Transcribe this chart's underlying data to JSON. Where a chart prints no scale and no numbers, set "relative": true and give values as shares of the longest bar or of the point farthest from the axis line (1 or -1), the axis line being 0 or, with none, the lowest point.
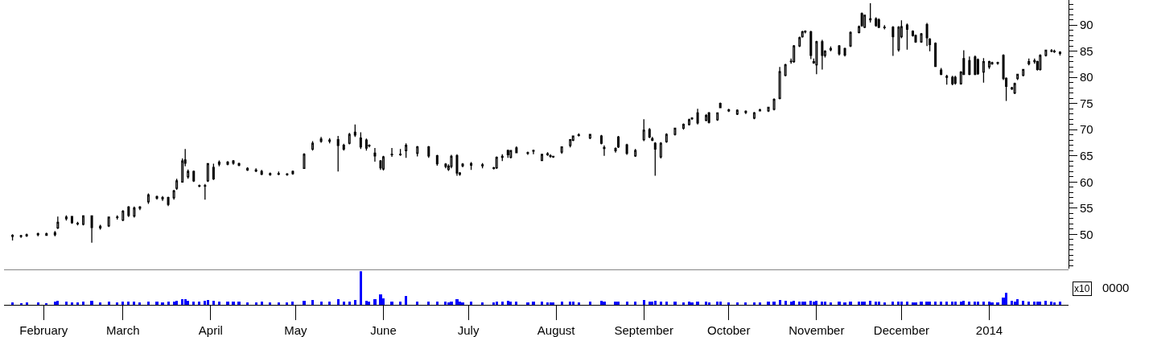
{
  "chart_data": [
    {
      "type": "candlestick",
      "color": "#000000",
      "tick_labels": "y",
      "xlim": [
        "2013-01-18",
        "2014-01-29"
      ],
      "ylim": [
        43.5,
        94.8
      ],
      "yticks": [
        50,
        55,
        60,
        65,
        70,
        75,
        80,
        85,
        90
      ],
      "x": [
        "2013-01-21",
        "2013-01-24",
        "2013-01-26",
        "2013-01-30",
        "2013-02-02",
        "2013-02-05",
        "2013-02-06",
        "2013-02-09",
        "2013-02-11",
        "2013-02-13",
        "2013-02-15",
        "2013-02-18",
        "2013-02-21",
        "2013-02-24",
        "2013-02-27",
        "2013-03-01",
        "2013-03-03",
        "2013-03-05",
        "2013-03-07",
        "2013-03-10",
        "2013-03-13",
        "2013-03-15",
        "2013-03-17",
        "2013-03-19",
        "2013-03-20",
        "2013-03-22",
        "2013-03-23",
        "2013-03-24",
        "2013-03-26",
        "2013-03-28",
        "2013-03-30",
        "2013-03-31",
        "2013-04-02",
        "2013-04-04",
        "2013-04-07",
        "2013-04-09",
        "2013-04-11",
        "2013-04-14",
        "2013-04-17",
        "2013-04-19",
        "2013-04-22",
        "2013-04-25",
        "2013-04-28",
        "2013-04-30",
        "2013-05-04",
        "2013-05-07",
        "2013-05-10",
        "2013-05-13",
        "2013-05-16",
        "2013-05-18",
        "2013-05-20",
        "2013-05-22",
        "2013-05-24",
        "2013-05-26",
        "2013-05-27",
        "2013-05-29",
        "2013-05-31",
        "2013-06-01",
        "2013-06-04",
        "2013-06-07",
        "2013-06-09",
        "2013-06-13",
        "2013-06-17",
        "2013-06-20",
        "2013-06-23",
        "2013-06-24",
        "2013-06-25",
        "2013-06-27",
        "2013-06-28",
        "2013-06-29",
        "2013-07-02",
        "2013-07-06",
        "2013-07-10",
        "2013-07-11",
        "2013-07-13",
        "2013-07-15",
        "2013-07-16",
        "2013-07-18",
        "2013-07-22",
        "2013-07-24",
        "2013-07-27",
        "2013-07-29",
        "2013-07-30",
        "2013-07-31",
        "2013-08-03",
        "2013-08-06",
        "2013-08-07",
        "2013-08-09",
        "2013-08-13",
        "2013-08-17",
        "2013-08-18",
        "2013-08-22",
        "2013-08-23",
        "2013-08-26",
        "2013-08-29",
        "2013-09-01",
        "2013-09-03",
        "2013-09-04",
        "2013-09-05",
        "2013-09-07",
        "2013-09-09",
        "2013-09-12",
        "2013-09-15",
        "2013-09-17",
        "2013-09-18",
        "2013-09-20",
        "2013-09-23",
        "2013-09-24",
        "2013-09-27",
        "2013-09-28",
        "2013-10-01",
        "2013-10-04",
        "2013-10-07",
        "2013-10-10",
        "2013-10-12",
        "2013-10-15",
        "2013-10-17",
        "2013-10-19",
        "2013-10-21",
        "2013-10-23",
        "2013-10-24",
        "2013-10-26",
        "2013-10-27",
        "2013-10-28",
        "2013-10-30",
        "2013-10-31",
        "2013-11-01",
        "2013-11-03",
        "2013-11-04",
        "2013-11-06",
        "2013-11-09",
        "2013-11-11",
        "2013-11-13",
        "2013-11-16",
        "2013-11-17",
        "2013-11-18",
        "2013-11-20",
        "2013-11-22",
        "2013-11-23",
        "2013-11-25",
        "2013-11-28",
        "2013-11-30",
        "2013-12-01",
        "2013-12-03",
        "2013-12-05",
        "2013-12-06",
        "2013-12-08",
        "2013-12-10",
        "2013-12-11",
        "2013-12-13",
        "2013-12-15",
        "2013-12-17",
        "2013-12-19",
        "2013-12-20",
        "2013-12-22",
        "2013-12-23",
        "2013-12-25",
        "2013-12-27",
        "2013-12-28",
        "2013-12-30",
        "2014-01-01",
        "2014-01-02",
        "2014-01-04",
        "2014-01-06",
        "2014-01-07",
        "2014-01-09",
        "2014-01-10",
        "2014-01-11",
        "2014-01-13",
        "2014-01-15",
        "2014-01-17",
        "2014-01-18",
        "2014-01-19",
        "2014-01-21",
        "2014-01-23",
        "2014-01-24",
        "2014-01-26"
      ],
      "ohlc": [
        [
          49.6,
          50.0,
          48.8,
          49.8
        ],
        [
          49.6,
          49.9,
          49.3,
          49.7
        ],
        [
          49.7,
          50.1,
          49.5,
          49.9
        ],
        [
          49.9,
          50.3,
          49.6,
          50.1
        ],
        [
          50.1,
          50.3,
          49.7,
          49.8
        ],
        [
          49.9,
          50.6,
          49.6,
          50.3
        ],
        [
          51.2,
          53.4,
          51.0,
          52.3
        ],
        [
          53.0,
          53.6,
          52.6,
          53.3
        ],
        [
          53.4,
          53.5,
          52.0,
          52.2
        ],
        [
          52.0,
          52.4,
          51.7,
          52.1
        ],
        [
          51.9,
          53.6,
          51.7,
          53.5
        ],
        [
          53.5,
          53.6,
          48.4,
          51.3
        ],
        [
          51.2,
          51.8,
          50.9,
          51.5
        ],
        [
          51.6,
          53.4,
          51.4,
          53.3
        ],
        [
          53.2,
          53.6,
          52.8,
          53.3
        ],
        [
          52.7,
          54.6,
          52.5,
          54.4
        ],
        [
          55.2,
          55.4,
          53.3,
          53.6
        ],
        [
          53.5,
          55.3,
          53.2,
          55.0
        ],
        [
          55.0,
          55.4,
          54.6,
          55.2
        ],
        [
          56.2,
          57.8,
          55.8,
          57.5
        ],
        [
          57.2,
          57.4,
          56.6,
          56.9
        ],
        [
          56.8,
          57.3,
          56.4,
          57.0
        ],
        [
          57.0,
          57.2,
          55.4,
          55.7
        ],
        [
          57.0,
          58.5,
          56.6,
          58.3
        ],
        [
          58.8,
          60.6,
          58.5,
          60.2
        ],
        [
          60.0,
          64.5,
          59.9,
          64.0
        ],
        [
          64.2,
          66.3,
          63.0,
          63.6
        ],
        [
          61.0,
          62.4,
          60.6,
          62.0
        ],
        [
          62.0,
          62.2,
          60.0,
          60.2
        ],
        [
          59.3,
          59.5,
          59.0,
          59.2
        ],
        [
          59.2,
          59.6,
          56.6,
          59.3
        ],
        [
          60.2,
          63.6,
          60.0,
          63.5
        ],
        [
          62.8,
          63.5,
          60.4,
          60.6
        ],
        [
          63.4,
          64.1,
          63.0,
          63.8
        ],
        [
          63.8,
          64.0,
          63.2,
          63.4
        ],
        [
          63.6,
          64.2,
          63.3,
          64.0
        ],
        [
          63.5,
          63.7,
          63.0,
          63.2
        ],
        [
          62.6,
          62.8,
          62.1,
          62.3
        ],
        [
          62.3,
          62.6,
          61.9,
          62.1
        ],
        [
          62.0,
          62.3,
          61.3,
          61.5
        ],
        [
          61.6,
          61.8,
          61.2,
          61.4
        ],
        [
          61.6,
          62.0,
          61.3,
          61.5
        ],
        [
          61.4,
          61.7,
          61.2,
          61.5
        ],
        [
          61.6,
          62.2,
          61.4,
          62.0
        ],
        [
          62.6,
          65.5,
          62.5,
          65.3
        ],
        [
          66.3,
          67.8,
          66.0,
          67.4
        ],
        [
          67.8,
          68.6,
          67.5,
          68.2
        ],
        [
          68.0,
          68.4,
          67.4,
          67.8
        ],
        [
          68.1,
          68.8,
          62.0,
          67.0
        ],
        [
          67.0,
          67.3,
          66.0,
          66.3
        ],
        [
          67.4,
          69.4,
          67.2,
          69.1
        ],
        [
          69.5,
          71.0,
          68.6,
          69.0
        ],
        [
          68.4,
          69.5,
          66.3,
          66.7
        ],
        [
          68.0,
          68.3,
          66.0,
          66.5
        ],
        [
          67.0,
          67.2,
          66.6,
          66.9
        ],
        [
          65.5,
          66.5,
          63.9,
          65.0
        ],
        [
          64.0,
          64.2,
          62.3,
          62.7
        ],
        [
          62.5,
          65.0,
          62.2,
          64.8
        ],
        [
          65.2,
          66.5,
          64.8,
          65.3
        ],
        [
          65.3,
          66.3,
          65.0,
          65.2
        ],
        [
          66.0,
          67.4,
          64.6,
          67.0
        ],
        [
          65.5,
          66.9,
          64.9,
          66.7
        ],
        [
          66.7,
          66.9,
          64.6,
          65.0
        ],
        [
          65.0,
          65.2,
          63.1,
          63.5
        ],
        [
          63.4,
          63.6,
          62.6,
          63.0
        ],
        [
          62.4,
          63.4,
          62.1,
          63.0
        ],
        [
          63.0,
          65.2,
          62.6,
          64.9
        ],
        [
          65.0,
          65.3,
          61.2,
          61.7
        ],
        [
          61.7,
          61.9,
          61.2,
          61.5
        ],
        [
          63.1,
          63.6,
          62.8,
          63.4
        ],
        [
          63.2,
          63.8,
          62.3,
          63.5
        ],
        [
          63.3,
          63.6,
          62.6,
          63.1
        ],
        [
          62.6,
          62.9,
          62.4,
          62.7
        ],
        [
          62.7,
          64.9,
          62.5,
          64.7
        ],
        [
          64.7,
          65.3,
          64.0,
          64.9
        ],
        [
          66.0,
          66.2,
          64.6,
          65.2
        ],
        [
          64.7,
          66.1,
          64.5,
          66.0
        ],
        [
          66.5,
          66.8,
          65.5,
          65.6
        ],
        [
          65.6,
          65.8,
          65.2,
          65.5
        ],
        [
          65.9,
          66.2,
          65.3,
          66.0
        ],
        [
          64.1,
          65.4,
          64.0,
          65.3
        ],
        [
          65.4,
          65.7,
          65.0,
          65.2
        ],
        [
          64.9,
          65.3,
          64.6,
          65.0
        ],
        [
          64.8,
          65.0,
          64.6,
          64.9
        ],
        [
          65.7,
          66.8,
          65.4,
          66.7
        ],
        [
          67.0,
          68.2,
          66.6,
          68.1
        ],
        [
          68.0,
          68.9,
          67.8,
          68.8
        ],
        [
          68.9,
          69.3,
          68.7,
          69.0
        ],
        [
          68.4,
          69.2,
          68.2,
          69.1
        ],
        [
          68.8,
          69.0,
          67.2,
          67.4
        ],
        [
          66.6,
          67.0,
          65.0,
          66.4
        ],
        [
          66.0,
          66.6,
          65.6,
          66.4
        ],
        [
          68.6,
          68.8,
          66.5,
          66.7
        ],
        [
          67.1,
          67.3,
          65.2,
          65.5
        ],
        [
          65.0,
          66.3,
          64.8,
          66.0
        ],
        [
          68.1,
          72.0,
          67.8,
          69.9
        ],
        [
          70.0,
          70.3,
          68.4,
          68.6
        ],
        [
          68.3,
          68.6,
          67.8,
          68.0
        ],
        [
          67.4,
          67.6,
          61.2,
          66.3
        ],
        [
          64.8,
          67.6,
          64.5,
          67.4
        ],
        [
          67.7,
          69.3,
          67.5,
          69.1
        ],
        [
          69.1,
          70.4,
          68.9,
          70.3
        ],
        [
          70.3,
          71.2,
          70.0,
          71.0
        ],
        [
          71.0,
          72.1,
          70.8,
          71.9
        ],
        [
          72.2,
          72.4,
          71.9,
          72.1
        ],
        [
          73.2,
          74.0,
          71.0,
          71.3
        ],
        [
          71.8,
          73.0,
          71.6,
          72.7
        ],
        [
          73.2,
          73.4,
          71.2,
          71.4
        ],
        [
          71.9,
          73.3,
          71.7,
          73.2
        ],
        [
          75.0,
          75.2,
          74.1,
          74.2
        ],
        [
          73.8,
          74.0,
          73.4,
          73.6
        ],
        [
          73.0,
          73.9,
          72.8,
          73.7
        ],
        [
          73.5,
          73.7,
          73.0,
          73.3
        ],
        [
          72.2,
          73.4,
          72.0,
          73.2
        ],
        [
          73.8,
          74.0,
          73.5,
          73.6
        ],
        [
          73.6,
          74.4,
          73.4,
          74.3
        ],
        [
          73.9,
          76.0,
          73.7,
          75.8
        ],
        [
          76.0,
          82.0,
          75.8,
          81.1
        ],
        [
          80.4,
          82.6,
          80.2,
          82.4
        ],
        [
          83.0,
          83.6,
          82.6,
          83.1
        ],
        [
          83.0,
          86.2,
          82.8,
          86.0
        ],
        [
          86.0,
          87.8,
          85.8,
          87.6
        ],
        [
          87.8,
          88.9,
          87.6,
          88.7
        ],
        [
          88.7,
          89.0,
          88.4,
          88.8
        ],
        [
          88.7,
          88.9,
          83.5,
          84.2
        ],
        [
          83.0,
          83.6,
          82.6,
          82.8
        ],
        [
          82.4,
          87.0,
          80.6,
          86.8
        ],
        [
          86.8,
          87.2,
          81.5,
          84.2
        ],
        [
          84.2,
          85.2,
          83.8,
          85.0
        ],
        [
          85.3,
          85.9,
          85.0,
          85.5
        ],
        [
          86.0,
          86.2,
          84.2,
          84.5
        ],
        [
          85.5,
          85.7,
          84.0,
          84.3
        ],
        [
          86.0,
          88.8,
          85.8,
          88.6
        ],
        [
          88.6,
          89.9,
          88.4,
          89.7
        ],
        [
          92.2,
          92.4,
          89.7,
          89.9
        ],
        [
          89.6,
          92.0,
          89.4,
          91.9
        ],
        [
          91.0,
          94.2,
          90.5,
          91.2
        ],
        [
          91.2,
          91.5,
          89.7,
          89.9
        ],
        [
          91.0,
          91.3,
          89.4,
          89.6
        ],
        [
          89.6,
          90.0,
          89.2,
          89.5
        ],
        [
          89.6,
          89.8,
          84.1,
          87.8
        ],
        [
          85.3,
          89.8,
          84.9,
          89.6
        ],
        [
          87.8,
          90.9,
          87.5,
          89.7
        ],
        [
          90.0,
          90.3,
          85.3,
          89.2
        ],
        [
          88.8,
          89.0,
          87.8,
          88.0
        ],
        [
          88.0,
          88.2,
          86.6,
          86.8
        ],
        [
          86.8,
          88.5,
          86.6,
          88.3
        ],
        [
          90.1,
          90.4,
          86.0,
          87.6
        ],
        [
          87.3,
          87.5,
          85.0,
          86.3
        ],
        [
          86.5,
          86.7,
          82.0,
          82.1
        ],
        [
          81.4,
          81.8,
          80.4,
          80.6
        ],
        [
          80.2,
          80.5,
          78.6,
          80.0
        ],
        [
          80.0,
          80.3,
          78.5,
          78.8
        ],
        [
          80.0,
          80.3,
          78.6,
          78.9
        ],
        [
          78.8,
          81.2,
          78.6,
          81.0
        ],
        [
          83.6,
          85.2,
          80.4,
          80.6
        ],
        [
          83.2,
          84.0,
          80.4,
          80.6
        ],
        [
          83.9,
          84.2,
          80.4,
          80.6
        ],
        [
          83.4,
          83.6,
          80.5,
          80.7
        ],
        [
          81.0,
          83.7,
          79.0,
          83.0
        ],
        [
          82.0,
          83.2,
          81.6,
          83.0
        ],
        [
          82.6,
          83.0,
          82.4,
          82.8
        ],
        [
          82.7,
          83.0,
          82.4,
          82.8
        ],
        [
          84.2,
          84.4,
          79.5,
          79.8
        ],
        [
          79.8,
          80.0,
          75.5,
          78.3
        ],
        [
          78.0,
          78.2,
          77.6,
          77.8
        ],
        [
          77.0,
          79.0,
          76.8,
          78.8
        ],
        [
          79.8,
          80.7,
          79.5,
          80.6
        ],
        [
          80.4,
          81.6,
          80.2,
          81.5
        ],
        [
          82.6,
          83.6,
          82.3,
          83.0
        ],
        [
          83.0,
          83.6,
          82.6,
          83.2
        ],
        [
          83.0,
          83.2,
          81.3,
          81.5
        ],
        [
          81.5,
          84.4,
          81.3,
          84.2
        ],
        [
          84.2,
          85.3,
          84.0,
          85.2
        ],
        [
          85.1,
          85.4,
          84.8,
          85.0
        ],
        [
          85.0,
          85.3,
          84.7,
          84.9
        ],
        [
          84.8,
          85.0,
          84.2,
          84.6
        ]
      ]
    },
    {
      "type": "bar",
      "relative": true,
      "color": "#0000ff",
      "tick_labels": "x",
      "x": [
        "2013-01-21",
        "2013-01-24",
        "2013-01-26",
        "2013-01-30",
        "2013-02-02",
        "2013-02-05",
        "2013-02-06",
        "2013-02-09",
        "2013-02-11",
        "2013-02-13",
        "2013-02-15",
        "2013-02-18",
        "2013-02-21",
        "2013-02-24",
        "2013-02-27",
        "2013-03-01",
        "2013-03-03",
        "2013-03-05",
        "2013-03-07",
        "2013-03-10",
        "2013-03-13",
        "2013-03-15",
        "2013-03-17",
        "2013-03-19",
        "2013-03-20",
        "2013-03-22",
        "2013-03-23",
        "2013-03-24",
        "2013-03-26",
        "2013-03-28",
        "2013-03-30",
        "2013-03-31",
        "2013-04-02",
        "2013-04-04",
        "2013-04-07",
        "2013-04-09",
        "2013-04-11",
        "2013-04-14",
        "2013-04-17",
        "2013-04-19",
        "2013-04-22",
        "2013-04-25",
        "2013-04-28",
        "2013-04-30",
        "2013-05-04",
        "2013-05-07",
        "2013-05-10",
        "2013-05-13",
        "2013-05-16",
        "2013-05-18",
        "2013-05-20",
        "2013-05-22",
        "2013-05-24",
        "2013-05-26",
        "2013-05-27",
        "2013-05-29",
        "2013-05-31",
        "2013-06-01",
        "2013-06-04",
        "2013-06-07",
        "2013-06-09",
        "2013-06-13",
        "2013-06-17",
        "2013-06-20",
        "2013-06-23",
        "2013-06-24",
        "2013-06-25",
        "2013-06-27",
        "2013-06-28",
        "2013-06-29",
        "2013-07-02",
        "2013-07-06",
        "2013-07-10",
        "2013-07-11",
        "2013-07-13",
        "2013-07-15",
        "2013-07-16",
        "2013-07-18",
        "2013-07-22",
        "2013-07-24",
        "2013-07-27",
        "2013-07-29",
        "2013-07-30",
        "2013-07-31",
        "2013-08-03",
        "2013-08-06",
        "2013-08-07",
        "2013-08-09",
        "2013-08-13",
        "2013-08-17",
        "2013-08-18",
        "2013-08-22",
        "2013-08-23",
        "2013-08-26",
        "2013-08-29",
        "2013-09-01",
        "2013-09-03",
        "2013-09-04",
        "2013-09-05",
        "2013-09-07",
        "2013-09-09",
        "2013-09-12",
        "2013-09-15",
        "2013-09-17",
        "2013-09-18",
        "2013-09-20",
        "2013-09-23",
        "2013-09-24",
        "2013-09-27",
        "2013-09-28",
        "2013-10-01",
        "2013-10-04",
        "2013-10-07",
        "2013-10-10",
        "2013-10-12",
        "2013-10-15",
        "2013-10-17",
        "2013-10-19",
        "2013-10-21",
        "2013-10-23",
        "2013-10-24",
        "2013-10-26",
        "2013-10-27",
        "2013-10-28",
        "2013-10-30",
        "2013-10-31",
        "2013-11-01",
        "2013-11-03",
        "2013-11-04",
        "2013-11-06",
        "2013-11-09",
        "2013-11-11",
        "2013-11-13",
        "2013-11-16",
        "2013-11-17",
        "2013-11-18",
        "2013-11-20",
        "2013-11-22",
        "2013-11-23",
        "2013-11-25",
        "2013-11-28",
        "2013-11-30",
        "2013-12-01",
        "2013-12-03",
        "2013-12-05",
        "2013-12-06",
        "2013-12-08",
        "2013-12-10",
        "2013-12-11",
        "2013-12-13",
        "2013-12-15",
        "2013-12-17",
        "2013-12-19",
        "2013-12-20",
        "2013-12-22",
        "2013-12-23",
        "2013-12-25",
        "2013-12-27",
        "2013-12-28",
        "2013-12-30",
        "2014-01-01",
        "2014-01-02",
        "2014-01-04",
        "2014-01-06",
        "2014-01-07",
        "2014-01-09",
        "2014-01-10",
        "2014-01-11",
        "2014-01-13",
        "2014-01-15",
        "2014-01-17",
        "2014-01-18",
        "2014-01-19",
        "2014-01-21",
        "2014-01-23",
        "2014-01-24",
        "2014-01-26"
      ],
      "xlim": [
        "2013-01-18",
        "2014-01-29"
      ],
      "xticks": [
        {
          "value": "2013-02-01",
          "label": "February"
        },
        {
          "value": "2013-03-01",
          "label": "March"
        },
        {
          "value": "2013-04-01",
          "label": "April"
        },
        {
          "value": "2013-05-01",
          "label": "May"
        },
        {
          "value": "2013-06-01",
          "label": "June"
        },
        {
          "value": "2013-07-01",
          "label": "July"
        },
        {
          "value": "2013-08-01",
          "label": "August"
        },
        {
          "value": "2013-09-01",
          "label": "September"
        },
        {
          "value": "2013-10-01",
          "label": "October"
        },
        {
          "value": "2013-11-01",
          "label": "November"
        },
        {
          "value": "2013-12-01",
          "label": "December"
        },
        {
          "value": "2014-01-01",
          "label": "2014"
        }
      ],
      "annotations": [
        "x10",
        "0000"
      ],
      "values": [
        0.06,
        0.05,
        0.06,
        0.07,
        0.05,
        0.08,
        0.12,
        0.08,
        0.07,
        0.06,
        0.08,
        0.12,
        0.07,
        0.08,
        0.06,
        0.08,
        0.09,
        0.08,
        0.07,
        0.1,
        0.08,
        0.07,
        0.09,
        0.1,
        0.12,
        0.15,
        0.16,
        0.12,
        0.1,
        0.08,
        0.12,
        0.14,
        0.12,
        0.1,
        0.08,
        0.09,
        0.08,
        0.07,
        0.07,
        0.08,
        0.06,
        0.07,
        0.06,
        0.08,
        0.12,
        0.14,
        0.1,
        0.09,
        0.15,
        0.08,
        0.1,
        0.14,
        1.0,
        0.12,
        0.08,
        0.15,
        0.3,
        0.18,
        0.1,
        0.08,
        0.25,
        0.1,
        0.09,
        0.1,
        0.08,
        0.07,
        0.1,
        0.15,
        0.08,
        0.07,
        0.09,
        0.07,
        0.06,
        0.1,
        0.08,
        0.12,
        0.09,
        0.08,
        0.07,
        0.08,
        0.1,
        0.07,
        0.06,
        0.07,
        0.09,
        0.1,
        0.08,
        0.07,
        0.08,
        0.12,
        0.1,
        0.08,
        0.1,
        0.09,
        0.08,
        0.14,
        0.1,
        0.08,
        0.12,
        0.1,
        0.09,
        0.08,
        0.07,
        0.08,
        0.07,
        0.09,
        0.08,
        0.07,
        0.08,
        0.1,
        0.07,
        0.06,
        0.07,
        0.06,
        0.07,
        0.08,
        0.09,
        0.14,
        0.12,
        0.1,
        0.12,
        0.1,
        0.09,
        0.08,
        0.12,
        0.08,
        0.12,
        0.1,
        0.08,
        0.07,
        0.08,
        0.07,
        0.1,
        0.09,
        0.1,
        0.09,
        0.12,
        0.08,
        0.08,
        0.07,
        0.1,
        0.09,
        0.08,
        0.09,
        0.07,
        0.07,
        0.08,
        0.09,
        0.08,
        0.1,
        0.08,
        0.09,
        0.08,
        0.08,
        0.09,
        0.12,
        0.1,
        0.1,
        0.09,
        0.1,
        0.08,
        0.07,
        0.07,
        0.2,
        0.35,
        0.12,
        0.1,
        0.15,
        0.12,
        0.1,
        0.08,
        0.1,
        0.09,
        0.12,
        0.08,
        0.07,
        0.1
      ]
    }
  ]
}
